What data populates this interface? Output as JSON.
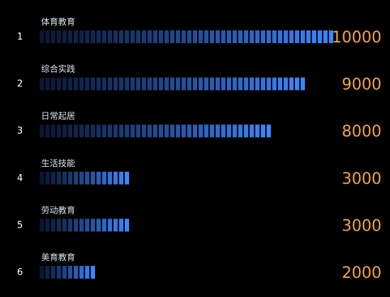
{
  "chart_data": {
    "type": "bar",
    "orientation": "horizontal",
    "categories": [
      "体育教育",
      "综合实践",
      "日常起居",
      "生活技能",
      "劳动教育",
      "美育教育"
    ],
    "ranks": [
      "1",
      "2",
      "3",
      "4",
      "5",
      "6"
    ],
    "values": [
      10000,
      9000,
      8000,
      3000,
      3000,
      2000
    ],
    "value_labels": [
      "10000",
      "9000",
      "8000",
      "3000",
      "3000",
      "2000"
    ],
    "xlim": [
      0,
      10000
    ],
    "bar_style": "segmented-gradient",
    "colors": {
      "background": "#000000",
      "bar_start": "#0a1733",
      "bar_end": "#3a86ff",
      "value_text": "#f5a345",
      "category_text": "#dfe6f2",
      "rank_text": "#ffffff"
    }
  }
}
